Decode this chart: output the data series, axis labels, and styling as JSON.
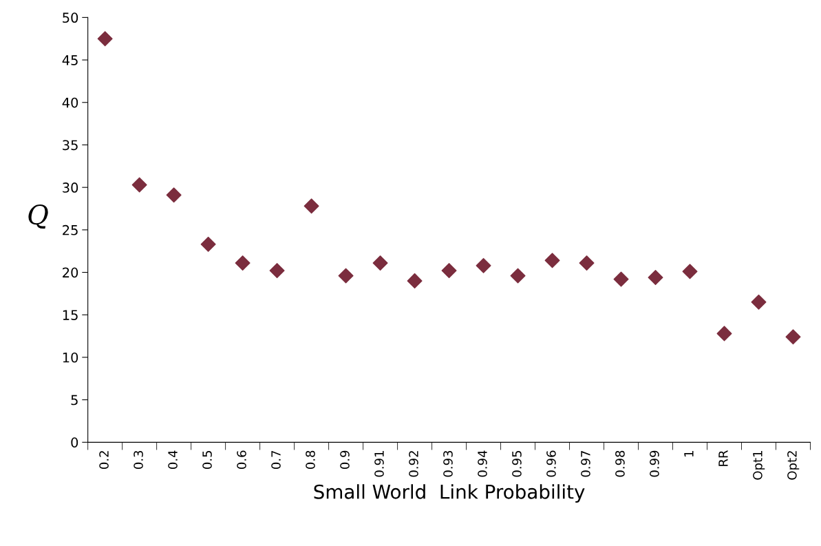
{
  "chart_data": {
    "type": "scatter",
    "xlabel": "Small World  Link Probability",
    "ylabel": "Q",
    "categories": [
      "0.2",
      "0.3",
      "0.4",
      "0.5",
      "0.6",
      "0.7",
      "0.8",
      "0.9",
      "0.91",
      "0.92",
      "0.93",
      "0.94",
      "0.95",
      "0.96",
      "0.97",
      "0.98",
      "0.99",
      "1",
      "RR",
      "Opt1",
      "Opt2"
    ],
    "series": [
      {
        "color": "#7b2d3e",
        "values": [
          47.5,
          30.3,
          29.1,
          23.3,
          21.1,
          20.2,
          27.8,
          19.6,
          21.1,
          19.0,
          20.2,
          20.8,
          19.6,
          21.4,
          21.1,
          19.2,
          19.4,
          20.1,
          12.8,
          16.5,
          12.4
        ]
      }
    ],
    "ylim": [
      0,
      50
    ],
    "yticks": [
      0,
      5,
      10,
      15,
      20,
      25,
      30,
      35,
      40,
      45,
      50
    ],
    "marker": "diamond",
    "grid": false,
    "legend": false
  }
}
